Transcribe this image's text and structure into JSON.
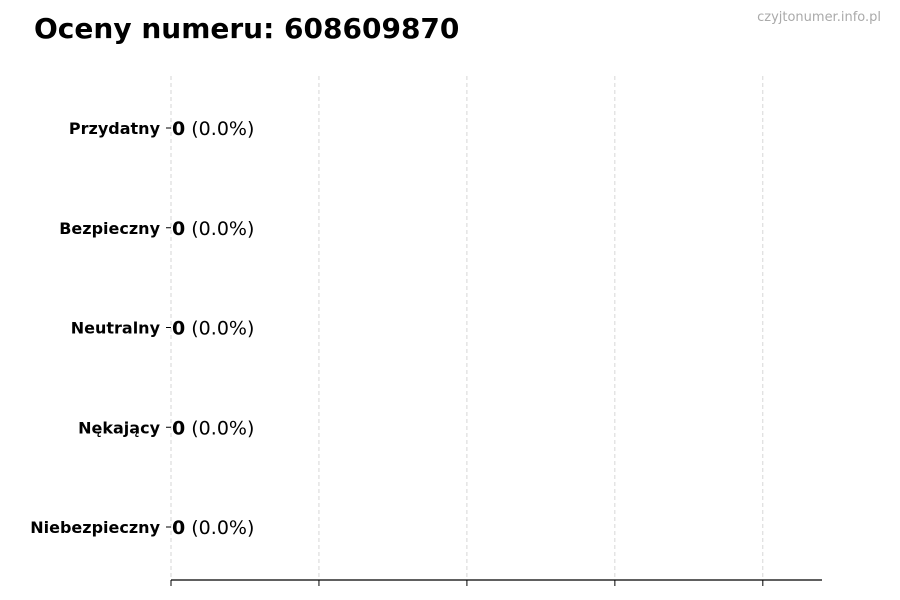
{
  "chart_data": {
    "type": "bar",
    "orientation": "horizontal",
    "title": "Oceny numeru: 608609870",
    "categories": [
      "Przydatny",
      "Bezpieczny",
      "Neutralny",
      "Nękający",
      "Niebezpieczny"
    ],
    "values": [
      0,
      0,
      0,
      0,
      0
    ],
    "data_labels": [
      {
        "count": "0",
        "percent": "(0.0%)"
      },
      {
        "count": "0",
        "percent": "(0.0%)"
      },
      {
        "count": "0",
        "percent": "(0.0%)"
      },
      {
        "count": "0",
        "percent": "(0.0%)"
      },
      {
        "count": "0",
        "percent": "(0.0%)"
      }
    ],
    "xlabel": "",
    "ylabel": "",
    "xlim": [
      0,
      4.4
    ],
    "xticks": [
      0,
      1,
      2,
      3,
      4
    ],
    "xtick_labels_visible": false,
    "grid": "x-dashed",
    "grid_color": "#cccccc"
  },
  "watermark": "czyjtonumer.info.pl"
}
